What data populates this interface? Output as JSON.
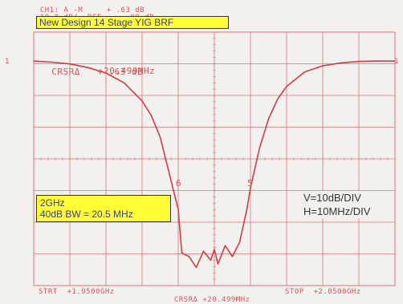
{
  "header": {
    "line1_ch": "CH1: A -M",
    "line1_val": "+ .63 dB",
    "line2_scale": "10.0 dB/",
    "line2_ref": "REF",
    "line2_val": "- .00 dB"
  },
  "title": "New Design 14 Stage YIG BRF",
  "cursor": {
    "label": "CRSR",
    "value_db": "+ .63 dB",
    "value_freq": "+20.499MHz"
  },
  "markers": {
    "m1": "6",
    "m2": "5"
  },
  "ref_marker": "1",
  "info_box": {
    "line1": "2GHz",
    "line2": "40dB BW = 20.5 MHz"
  },
  "scale_note": {
    "line1": "V=10dB/DIV",
    "line2": "H=10MHz/DIV"
  },
  "footer": {
    "start": "STRT  +1.9500GHz",
    "crsr": "CRSR",
    "crsr_val": "+20.499MHz",
    "stop": "STOP  +2.0500GHz"
  },
  "colors": {
    "trace": "#d23b4a",
    "grid": "#d9737a",
    "text": "#d9545a",
    "box": "#ffff33"
  },
  "chart_data": {
    "type": "line",
    "x": [
      1.95,
      1.955,
      1.96,
      1.965,
      1.97,
      1.975,
      1.98,
      1.9825,
      1.985,
      1.9875,
      1.99,
      1.991,
      1.993,
      1.995,
      1.997,
      1.999,
      2.0,
      2.001,
      2.003,
      2.005,
      2.007,
      2.009,
      2.01,
      2.0125,
      2.015,
      2.0175,
      2.02,
      2.025,
      2.03,
      2.035,
      2.04,
      2.045,
      2.05
    ],
    "y": [
      0.0,
      -0.3,
      -0.8,
      -1.8,
      -3.3,
      -6.0,
      -11.0,
      -15.0,
      -21.0,
      -31.0,
      -41.0,
      -53.0,
      -54.0,
      -57.0,
      -52.5,
      -55.0,
      -52.0,
      -56.0,
      -51.0,
      -54.0,
      -50.0,
      -41.0,
      -35.0,
      -24.0,
      -16.0,
      -10.5,
      -7.0,
      -3.0,
      -1.3,
      -0.5,
      -0.1,
      0.0,
      0.0
    ],
    "ylim": [
      -62,
      8
    ],
    "xlim": [
      1.95,
      2.05
    ]
  }
}
